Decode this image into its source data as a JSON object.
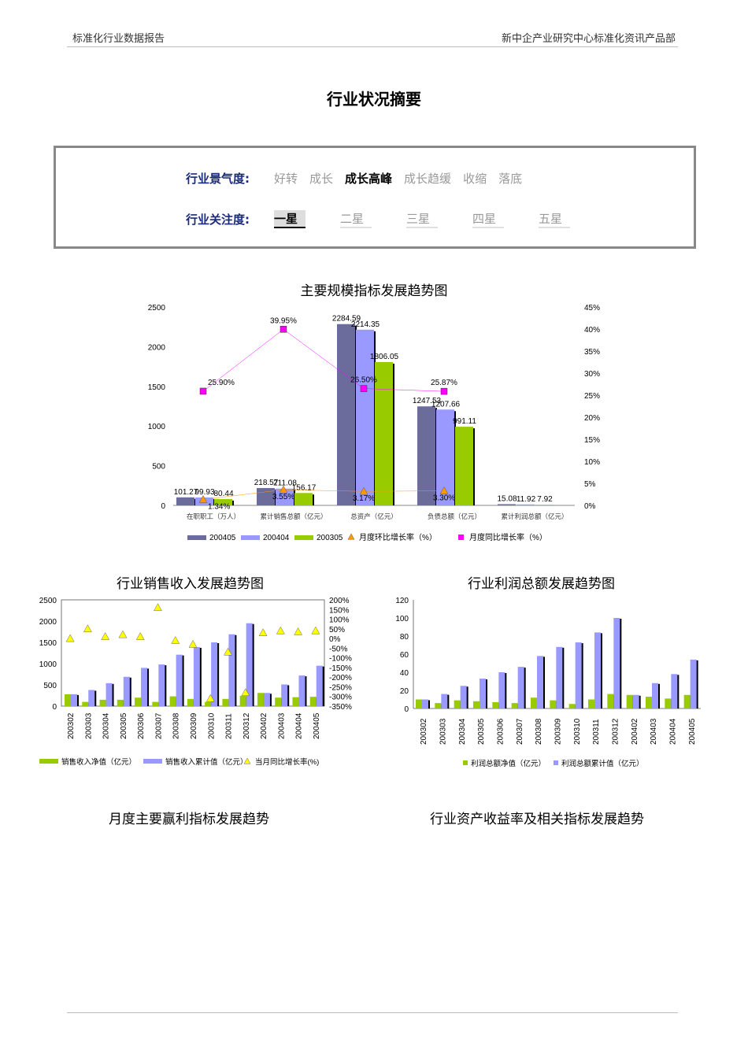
{
  "header": {
    "left": "标准化行业数据报告",
    "right": "新中企产业研究中心标准化资讯产品部"
  },
  "page_title": "行业状况摘要",
  "summary": {
    "climate_label": "行业景气度",
    "climate_options": [
      "好转",
      "成长",
      "成长高峰",
      "成长趋缓",
      "收缩",
      "落底"
    ],
    "climate_selected": "成长高峰",
    "attention_label": "行业关注度",
    "attention_options": [
      "一星",
      "二星",
      "三星",
      "四星",
      "五星"
    ],
    "attention_selected": "一星"
  },
  "section_titles": {
    "monthly_profit": "月度主要赢利指标发展趋势",
    "asset_return": "行业资产收益率及相关指标发展趋势"
  },
  "chart_data": [
    {
      "type": "bar",
      "title": "主要规模指标发展趋势图",
      "categories": [
        "在职职工（万人）",
        "累计销售总额（亿元）",
        "总资产（亿元）",
        "负债总额（亿元）",
        "累计利润总额（亿元）"
      ],
      "series": [
        {
          "name": "200405",
          "values": [
            101.27,
            218.57,
            2284.59,
            1247.53,
            15.08
          ],
          "color": "#6B6B9C"
        },
        {
          "name": "200404",
          "values": [
            99.93,
            211.08,
            2214.35,
            1207.66,
            11.92
          ],
          "color": "#9999FF"
        },
        {
          "name": "200305",
          "values": [
            80.44,
            156.17,
            1806.05,
            991.11,
            7.92
          ],
          "color": "#99CC00"
        }
      ],
      "line_series": [
        {
          "name": "月度环比增长率（%）",
          "values": [
            1.34,
            3.55,
            3.17,
            3.3,
            null
          ],
          "color": "#FF9900",
          "marker": "triangle"
        },
        {
          "name": "月度同比增长率（%）",
          "values": [
            25.9,
            39.95,
            26.5,
            25.87,
            null
          ],
          "color": "#FF00FF",
          "marker": "square"
        }
      ],
      "ylim": [
        0,
        2500
      ],
      "yticks": [
        0,
        500,
        1000,
        1500,
        2000,
        2500
      ],
      "y2lim": [
        0,
        45
      ],
      "y2ticks": [
        "0%",
        "5%",
        "10%",
        "15%",
        "20%",
        "25%",
        "30%",
        "35%",
        "40%",
        "45%"
      ],
      "legend": "bottom"
    },
    {
      "type": "bar",
      "title": "行业销售收入发展趋势图",
      "categories": [
        "200302",
        "200303",
        "200304",
        "200305",
        "200306",
        "200307",
        "200308",
        "200309",
        "200310",
        "200311",
        "200312",
        "200402",
        "200403",
        "200404",
        "200405"
      ],
      "series": [
        {
          "name": "销售收入净值（亿元）",
          "values": [
            280,
            100,
            150,
            150,
            200,
            100,
            230,
            170,
            100,
            170,
            240,
            310,
            200,
            210,
            220
          ],
          "color": "#99CC00"
        },
        {
          "name": "销售收入累计值（亿元）",
          "values": [
            280,
            380,
            540,
            690,
            900,
            980,
            1210,
            1390,
            1500,
            1690,
            1950,
            310,
            510,
            720,
            950
          ],
          "color": "#9999FF"
        }
      ],
      "line_series": [
        {
          "name": "当月同比增长率(%)",
          "values": [
            0,
            50,
            10,
            20,
            10,
            160,
            -10,
            -30,
            -310,
            -70,
            -280,
            30,
            40,
            35,
            40
          ],
          "color": "#FFFF00",
          "marker": "triangle"
        }
      ],
      "ylim": [
        0,
        2500
      ],
      "yticks": [
        0,
        500,
        1000,
        1500,
        2000,
        2500
      ],
      "y2lim": [
        -350,
        200
      ],
      "y2ticks": [
        "-350%",
        "-300%",
        "-250%",
        "-200%",
        "-150%",
        "-100%",
        "-50%",
        "0%",
        "50%",
        "100%",
        "150%",
        "200%"
      ],
      "legend": "bottom"
    },
    {
      "type": "bar",
      "title": "行业利润总额发展趋势图",
      "categories": [
        "200302",
        "200303",
        "200304",
        "200305",
        "200306",
        "200307",
        "200308",
        "200309",
        "200310",
        "200311",
        "200312",
        "200402",
        "200403",
        "200404",
        "200405"
      ],
      "series": [
        {
          "name": "利润总额净值（亿元）",
          "values": [
            10,
            6,
            9,
            8,
            7,
            6,
            12,
            9,
            5,
            10,
            16,
            15,
            13,
            11,
            15
          ],
          "color": "#99CC00"
        },
        {
          "name": "利润总额累计值（亿元）",
          "values": [
            10,
            16,
            25,
            33,
            40,
            46,
            58,
            68,
            73,
            84,
            100,
            15,
            28,
            38,
            54
          ],
          "color": "#9999FF"
        }
      ],
      "ylim": [
        0,
        120
      ],
      "yticks": [
        0,
        20,
        40,
        60,
        80,
        100,
        120
      ],
      "legend": "bottom"
    }
  ]
}
